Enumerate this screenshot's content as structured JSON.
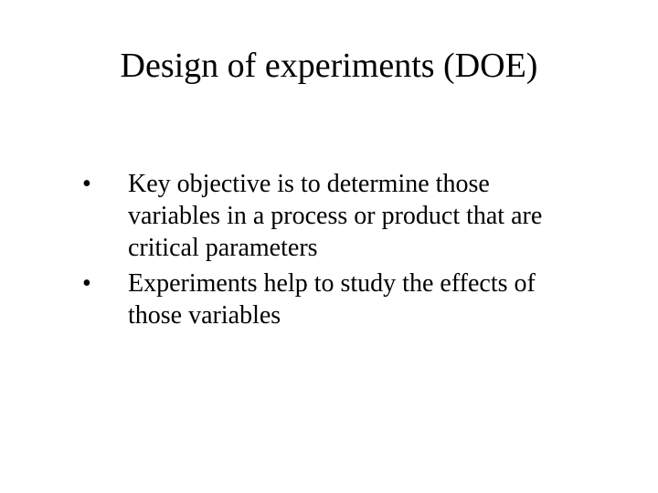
{
  "slide": {
    "title": "Design of experiments (DOE)",
    "bullets": [
      {
        "marker": "•",
        "text": "Key objective is to determine those variables in a process or product that are critical parameters"
      },
      {
        "marker": "•",
        "text": "Experiments help to study the effects of those variables"
      }
    ],
    "style": {
      "background_color": "#ffffff",
      "text_color": "#000000",
      "font_family": "Times New Roman",
      "title_fontsize": 38,
      "body_fontsize": 28
    }
  }
}
